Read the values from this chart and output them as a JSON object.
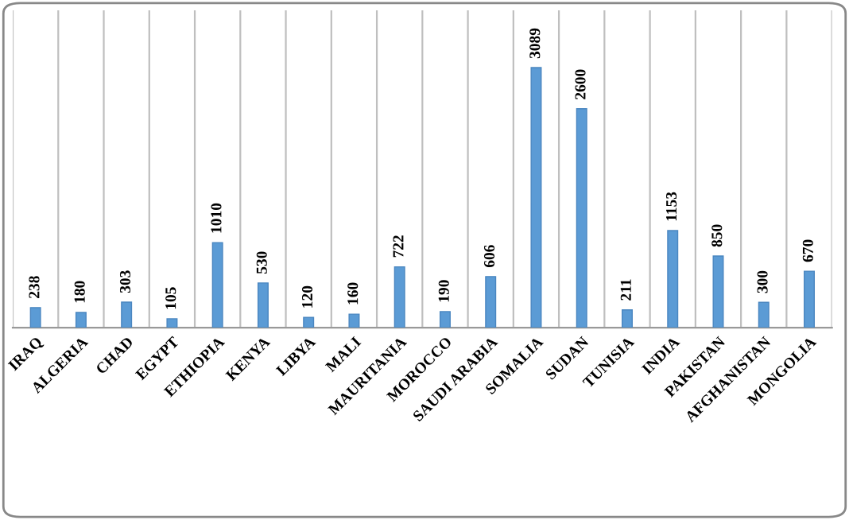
{
  "chart_data": {
    "type": "bar",
    "categories": [
      "IRAQ",
      "ALGERIA",
      "CHAD",
      "EGYPT",
      "ETHIOPIA",
      "KENYA",
      "LIBYA",
      "MALI",
      "MAURITANIA",
      "MOROCCO",
      "SAUDI ARABIA",
      "SOMALIA",
      "SUDAN",
      "TUNISIA",
      "INDIA",
      "PAKISTAN",
      "AFGHANISTAN",
      "MONGOLIA"
    ],
    "values": [
      238,
      180,
      303,
      105,
      1010,
      530,
      120,
      160,
      722,
      190,
      606,
      3089,
      2600,
      211,
      1153,
      850,
      300,
      670
    ],
    "color": "#5b9bd5",
    "data_labels": true,
    "grid": "x"
  }
}
